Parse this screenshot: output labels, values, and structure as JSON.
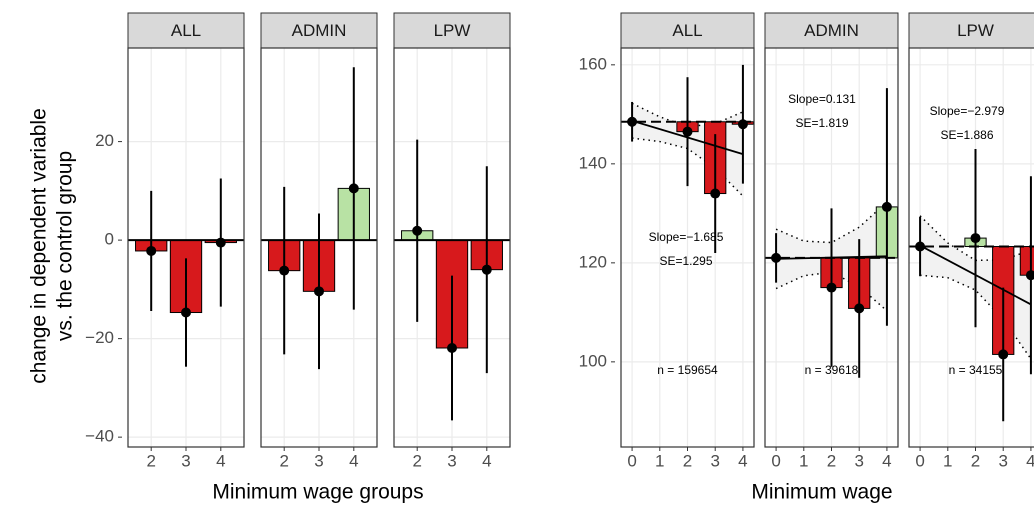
{
  "chart_data": [
    {
      "type": "bar",
      "ylabel": [
        "change in dependent variable",
        "vs. the control group"
      ],
      "xlabel": "Minimum wage groups",
      "categories": [
        "2",
        "3",
        "4"
      ],
      "ylim": [
        -42,
        39
      ],
      "yticks": [
        {
          "value": -40,
          "label": "−40"
        },
        {
          "value": -20,
          "label": "−20"
        },
        0,
        20
      ],
      "negative_color": "#d7191c",
      "positive_color": "#b8e2a4",
      "grid": true,
      "facets": [
        {
          "title": "ALL",
          "values": [
            -2.2,
            -14.7,
            -0.5
          ],
          "errors": [
            12.2,
            11,
            13
          ]
        },
        {
          "title": "ADMIN",
          "values": [
            -6.2,
            -10.4,
            10.5
          ],
          "errors": [
            17,
            15.8,
            24.6
          ]
        },
        {
          "title": "LPW",
          "values": [
            1.9,
            -21.9,
            -6
          ],
          "errors": [
            18.5,
            14.7,
            21
          ]
        }
      ]
    },
    {
      "type": "regression",
      "xlabel": "Minimum wage",
      "x": [
        0,
        1,
        2,
        3,
        4
      ],
      "xlim": [
        -0.4,
        4.4
      ],
      "xticks": [
        0,
        1,
        2,
        3,
        4
      ],
      "ylim": [
        82.8,
        163.4
      ],
      "yticks": [
        100,
        120,
        140,
        160
      ],
      "negative_color": "#d7191c",
      "positive_color": "#b8e2a4",
      "grid": true,
      "facets": [
        {
          "title": "ALL",
          "values": [
            148.5,
            null,
            146.5,
            134,
            148
          ],
          "errors": [
            4,
            null,
            11,
            12,
            12
          ],
          "fit": [
            148.7,
            141.96
          ],
          "ci_upper": [
            152.2,
            149.5,
            147.5,
            148.1,
            150.5
          ],
          "ci_lower": [
            145.2,
            144.5,
            143.1,
            139.1,
            133.5
          ],
          "slope_label": "Slope=−1.685",
          "se_label": "SE=1.295",
          "n_label": "n = 159654"
        },
        {
          "title": "ADMIN",
          "values": [
            121,
            null,
            115,
            110.8,
            131.3
          ],
          "errors": [
            5,
            null,
            16,
            14,
            24
          ],
          "fit": [
            120.8,
            121.32
          ],
          "ci_upper": [
            126.8,
            124.4,
            124.1,
            127.2,
            132.3
          ],
          "ci_lower": [
            114.8,
            117.4,
            118.1,
            115.2,
            110.3
          ],
          "slope_label": "Slope=0.131",
          "se_label": "SE=1.819",
          "n_label": "n = 39618"
        },
        {
          "title": "LPW",
          "values": [
            123.3,
            null,
            125,
            101.5,
            117.5
          ],
          "errors": [
            6,
            null,
            18,
            13.5,
            20
          ],
          "fit": [
            123.5,
            111.6
          ],
          "ci_upper": [
            129.5,
            124,
            120.5,
            120.6,
            122.6
          ],
          "ci_lower": [
            117.5,
            117,
            114.5,
            108.6,
            100.6
          ],
          "slope_label": "Slope=−2.979",
          "se_label": "SE=1.886",
          "n_label": "n = 34155"
        }
      ]
    }
  ]
}
